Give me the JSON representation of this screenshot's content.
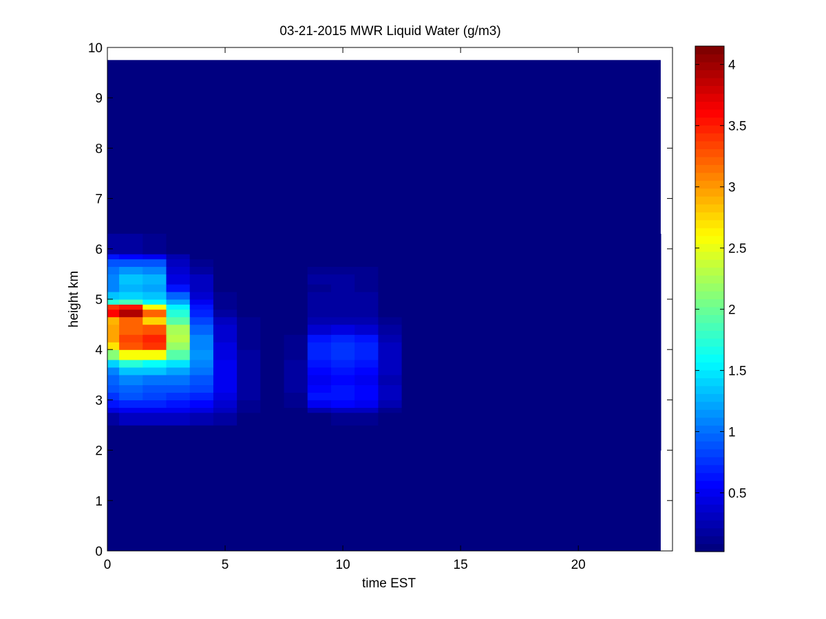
{
  "chart_data": {
    "type": "heatmap",
    "title": "03-21-2015 MWR Liquid Water (g/m3)",
    "xlabel": "time EST",
    "ylabel": "height km",
    "xlim": [
      0,
      24
    ],
    "ylim": [
      0,
      10
    ],
    "xticks": [
      0,
      5,
      10,
      15,
      20
    ],
    "yticks": [
      0,
      1,
      2,
      3,
      4,
      5,
      6,
      7,
      8,
      9,
      10
    ],
    "data_extent": {
      "x": [
        0,
        23.5
      ],
      "y": [
        0,
        9.75
      ]
    },
    "colormap": "jet",
    "clim": [
      0.02,
      4.15
    ],
    "colorbar_ticks": [
      0.5,
      1,
      1.5,
      2,
      2.5,
      3,
      3.5,
      4
    ],
    "colorbar_tick_labels": [
      "0.5",
      "1",
      "1.5",
      "2",
      "2.5",
      "3",
      "3.5",
      "4"
    ],
    "background_value": 0.03,
    "time_bins": [
      0,
      0.5,
      1.5,
      2.5,
      3.5,
      4.5,
      5.5,
      6.5,
      7.5,
      8.5,
      9.5,
      10.5,
      11.5,
      12.5,
      23.5
    ],
    "height_bins": [
      2.0,
      2.5,
      2.75,
      2.85,
      3.0,
      3.15,
      3.3,
      3.5,
      3.65,
      3.8,
      4.0,
      4.15,
      4.3,
      4.5,
      4.65,
      4.8,
      4.9,
      5.0,
      5.15,
      5.3,
      5.5,
      5.65,
      5.8,
      5.9,
      6.3
    ],
    "values": [
      [
        0.05,
        0.05,
        0.05,
        0.05,
        0.04,
        0.03,
        0.03,
        0.03,
        0.03,
        0.03,
        0.03,
        0.03,
        0.03,
        0.03
      ],
      [
        0.15,
        0.25,
        0.25,
        0.25,
        0.22,
        0.15,
        0.05,
        0.03,
        0.03,
        0.05,
        0.1,
        0.1,
        0.05,
        0.03
      ],
      [
        0.4,
        0.5,
        0.5,
        0.45,
        0.4,
        0.25,
        0.08,
        0.03,
        0.05,
        0.2,
        0.25,
        0.25,
        0.1,
        0.04
      ],
      [
        0.6,
        0.7,
        0.65,
        0.6,
        0.55,
        0.35,
        0.1,
        0.04,
        0.08,
        0.5,
        0.55,
        0.5,
        0.2,
        0.05
      ],
      [
        0.75,
        0.85,
        0.8,
        0.75,
        0.7,
        0.4,
        0.12,
        0.04,
        0.1,
        0.6,
        0.6,
        0.55,
        0.25,
        0.05
      ],
      [
        0.85,
        0.95,
        0.9,
        0.85,
        0.8,
        0.45,
        0.12,
        0.04,
        0.12,
        0.55,
        0.58,
        0.52,
        0.25,
        0.05
      ],
      [
        0.95,
        1.05,
        1.0,
        1.0,
        0.9,
        0.45,
        0.12,
        0.04,
        0.12,
        0.5,
        0.52,
        0.5,
        0.22,
        0.05
      ],
      [
        1.05,
        1.3,
        1.3,
        1.2,
        1.0,
        0.45,
        0.12,
        0.04,
        0.12,
        0.55,
        0.58,
        0.55,
        0.25,
        0.05
      ],
      [
        1.4,
        1.7,
        1.6,
        1.45,
        1.1,
        0.45,
        0.12,
        0.04,
        0.12,
        0.6,
        0.65,
        0.6,
        0.28,
        0.05
      ],
      [
        2.1,
        2.6,
        2.55,
        1.9,
        1.15,
        0.42,
        0.12,
        0.04,
        0.1,
        0.65,
        0.72,
        0.65,
        0.3,
        0.05
      ],
      [
        2.7,
        3.3,
        3.45,
        2.2,
        1.1,
        0.4,
        0.1,
        0.04,
        0.08,
        0.7,
        0.75,
        0.7,
        0.3,
        0.05
      ],
      [
        3.0,
        3.35,
        3.5,
        2.3,
        1.05,
        0.38,
        0.1,
        0.04,
        0.06,
        0.6,
        0.65,
        0.6,
        0.22,
        0.05
      ],
      [
        3.0,
        3.25,
        3.3,
        2.25,
        0.95,
        0.35,
        0.08,
        0.03,
        0.05,
        0.35,
        0.4,
        0.35,
        0.12,
        0.04
      ],
      [
        2.9,
        3.2,
        2.8,
        1.95,
        0.8,
        0.25,
        0.06,
        0.03,
        0.04,
        0.2,
        0.22,
        0.2,
        0.06,
        0.03
      ],
      [
        3.6,
        3.95,
        3.25,
        1.7,
        0.7,
        0.15,
        0.05,
        0.03,
        0.03,
        0.15,
        0.18,
        0.15,
        0.04,
        0.03
      ],
      [
        3.4,
        3.55,
        2.6,
        1.5,
        0.6,
        0.1,
        0.04,
        0.03,
        0.03,
        0.14,
        0.17,
        0.14,
        0.04,
        0.03
      ],
      [
        1.7,
        1.85,
        1.55,
        1.2,
        0.45,
        0.08,
        0.04,
        0.03,
        0.03,
        0.13,
        0.16,
        0.13,
        0.04,
        0.03
      ],
      [
        1.3,
        1.4,
        1.3,
        0.95,
        0.35,
        0.06,
        0.03,
        0.03,
        0.03,
        0.12,
        0.15,
        0.12,
        0.04,
        0.03
      ],
      [
        1.1,
        1.25,
        1.2,
        0.6,
        0.28,
        0.05,
        0.03,
        0.03,
        0.03,
        0.1,
        0.12,
        0.1,
        0.03,
        0.03
      ],
      [
        1.05,
        1.35,
        1.25,
        0.4,
        0.25,
        0.04,
        0.03,
        0.03,
        0.03,
        0.12,
        0.12,
        0.1,
        0.03,
        0.03
      ],
      [
        1.0,
        1.15,
        1.05,
        0.35,
        0.18,
        0.04,
        0.03,
        0.03,
        0.03,
        0.08,
        0.08,
        0.06,
        0.03,
        0.03
      ],
      [
        0.85,
        0.9,
        0.85,
        0.28,
        0.1,
        0.03,
        0.03,
        0.03,
        0.03,
        0.05,
        0.05,
        0.05,
        0.03,
        0.03
      ],
      [
        0.6,
        0.55,
        0.5,
        0.2,
        0.05,
        0.03,
        0.03,
        0.03,
        0.03,
        0.03,
        0.03,
        0.03,
        0.03,
        0.03
      ],
      [
        0.12,
        0.15,
        0.06,
        0.04,
        0.03,
        0.03,
        0.03,
        0.03,
        0.03,
        0.03,
        0.03,
        0.03,
        0.03,
        0.03
      ]
    ]
  }
}
